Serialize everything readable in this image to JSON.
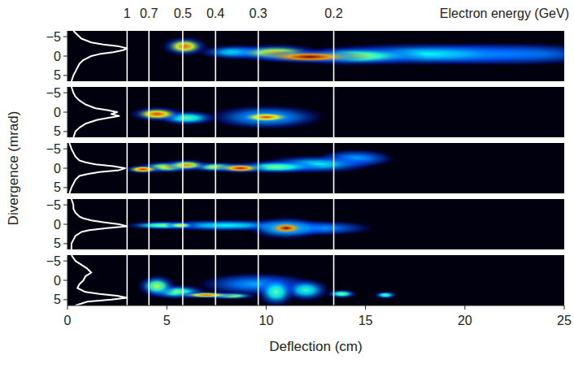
{
  "chart_data": {
    "type": "spectrometer_image",
    "xlabel": "Deflection (cm)",
    "ylabel": "Divergence (mrad)",
    "top_axis_label": "Electron energy (GeV)",
    "xlim": [
      0,
      25
    ],
    "xticks": [
      0,
      5,
      10,
      15,
      20,
      25
    ],
    "ylim": [
      6.5,
      -6.5
    ],
    "yticks": [
      -5,
      0,
      5
    ],
    "energies": [
      1,
      0.7,
      0.5,
      0.4,
      0.3,
      0.2
    ],
    "energy_positions": [
      3.0,
      4.1,
      5.8,
      7.45,
      9.6,
      13.4
    ],
    "panels": [
      {
        "profile_divergence": [
          -6.5,
          -5.5,
          -4.5,
          -3.5,
          -3,
          -2.5,
          -2,
          -1.5,
          -1,
          -0.5,
          0,
          1,
          2,
          3,
          4,
          5,
          6.5
        ],
        "profile_level": [
          0.3,
          0.5,
          0.7,
          1.2,
          1.8,
          2.6,
          3.0,
          2.8,
          2.3,
          1.6,
          1.2,
          0.8,
          0.6,
          0.5,
          0.4,
          0.3,
          0.2
        ],
        "blobs": [
          {
            "x": 5.9,
            "y": -2.5,
            "sx": 0.6,
            "sy": 1.3,
            "intensity": 0.75
          },
          {
            "x": 22,
            "y": -0.5,
            "sx": 3,
            "sy": 1.5,
            "intensity": 0.2
          },
          {
            "x": 18,
            "y": -0.5,
            "sx": 3,
            "sy": 1.5,
            "intensity": 0.3
          },
          {
            "x": 8.5,
            "y": -1,
            "sx": 1,
            "sy": 1,
            "intensity": 0.3
          },
          {
            "x": 14.5,
            "y": 0,
            "sx": 1.8,
            "sy": 1.3,
            "intensity": 0.5
          },
          {
            "x": 10.5,
            "y": -0.8,
            "sx": 1.2,
            "sy": 1.2,
            "intensity": 0.65
          },
          {
            "x": 12.2,
            "y": 0.2,
            "sx": 1.5,
            "sy": 0.9,
            "intensity": 1.0
          }
        ]
      },
      {
        "profile_divergence": [
          -6.5,
          -5,
          -4,
          -3,
          -2,
          -1,
          -0.5,
          0,
          0.5,
          1,
          1.5,
          2,
          3,
          4,
          5,
          6.5
        ],
        "profile_level": [
          0.2,
          0.3,
          0.4,
          0.6,
          0.9,
          1.4,
          2.0,
          2.5,
          2.2,
          2.6,
          2.0,
          1.5,
          0.9,
          0.6,
          0.4,
          0.3
        ],
        "blobs": [
          {
            "x": 10,
            "y": 1.3,
            "sx": 1.5,
            "sy": 1.6,
            "intensity": 0.3
          },
          {
            "x": 6,
            "y": 1.5,
            "sx": 0.8,
            "sy": 1,
            "intensity": 0.4
          },
          {
            "x": 4.5,
            "y": 0.5,
            "sx": 0.7,
            "sy": 1,
            "intensity": 0.8
          },
          {
            "x": 10,
            "y": 1.3,
            "sx": 0.8,
            "sy": 0.8,
            "intensity": 0.8
          }
        ]
      },
      {
        "profile_divergence": [
          -6.5,
          -5,
          -4,
          -3,
          -2,
          -1.5,
          -1,
          -0.5,
          0,
          0.5,
          1,
          1.5,
          2,
          3,
          4,
          5,
          6.5
        ],
        "profile_level": [
          0.1,
          0.2,
          0.3,
          0.4,
          0.6,
          0.9,
          1.4,
          2.3,
          2.9,
          2.6,
          1.6,
          1.0,
          0.6,
          0.4,
          0.3,
          0.2,
          0.1
        ],
        "blobs": [
          {
            "x": 14.5,
            "y": -2.5,
            "sx": 1,
            "sy": 1.2,
            "intensity": 0.2
          },
          {
            "x": 12.5,
            "y": -1,
            "sx": 1.5,
            "sy": 1.2,
            "intensity": 0.3
          },
          {
            "x": 10.5,
            "y": -0.3,
            "sx": 1.2,
            "sy": 0.9,
            "intensity": 0.45
          },
          {
            "x": 5,
            "y": -0.3,
            "sx": 0.8,
            "sy": 0.8,
            "intensity": 0.6
          },
          {
            "x": 7.5,
            "y": -0.3,
            "sx": 0.8,
            "sy": 0.7,
            "intensity": 0.55
          },
          {
            "x": 6,
            "y": -0.8,
            "sx": 0.6,
            "sy": 0.8,
            "intensity": 0.7
          },
          {
            "x": 3.8,
            "y": 0.3,
            "sx": 0.5,
            "sy": 0.6,
            "intensity": 0.85
          },
          {
            "x": 8.7,
            "y": 0,
            "sx": 0.7,
            "sy": 0.7,
            "intensity": 0.9
          }
        ]
      },
      {
        "profile_divergence": [
          -6.5,
          -5,
          -4,
          -3,
          -2,
          -1.5,
          -1,
          -0.5,
          0,
          0.5,
          1,
          1.5,
          2,
          3,
          4,
          5,
          6.5
        ],
        "profile_level": [
          0.2,
          0.3,
          0.3,
          0.4,
          0.6,
          0.8,
          1.2,
          1.8,
          2.6,
          3.0,
          2.0,
          1.1,
          0.7,
          0.4,
          0.3,
          0.2,
          0.2
        ],
        "blobs": [
          {
            "x": 12.5,
            "y": 1,
            "sx": 1.5,
            "sy": 1,
            "intensity": 0.2
          },
          {
            "x": 8,
            "y": 0.3,
            "sx": 2,
            "sy": 0.8,
            "intensity": 0.3
          },
          {
            "x": 4.8,
            "y": 0.3,
            "sx": 1,
            "sy": 0.6,
            "intensity": 0.45
          },
          {
            "x": 5.7,
            "y": 0.3,
            "sx": 0.4,
            "sy": 0.5,
            "intensity": 0.6
          },
          {
            "x": 11,
            "y": 1,
            "sx": 1,
            "sy": 1.5,
            "intensity": 0.45
          },
          {
            "x": 11,
            "y": 1,
            "sx": 0.55,
            "sy": 0.9,
            "intensity": 1.0
          }
        ]
      },
      {
        "profile_divergence": [
          -6.5,
          -5,
          -4,
          -3,
          -2,
          -1,
          0,
          1,
          2,
          3,
          3.5,
          4,
          4.5,
          5,
          5.5,
          6.5
        ],
        "profile_level": [
          0.2,
          0.4,
          0.7,
          1.0,
          1.2,
          0.9,
          0.8,
          0.6,
          0.5,
          0.9,
          1.6,
          2.5,
          3.0,
          2.2,
          1.0,
          0.4
        ],
        "blobs": [
          {
            "x": 9.5,
            "y": 1,
            "sx": 1.5,
            "sy": 1.5,
            "intensity": 0.2
          },
          {
            "x": 12,
            "y": 2.5,
            "sx": 0.6,
            "sy": 1.5,
            "intensity": 0.35
          },
          {
            "x": 10.5,
            "y": 3,
            "sx": 0.5,
            "sy": 2,
            "intensity": 0.4
          },
          {
            "x": 16,
            "y": 3.8,
            "sx": 0.3,
            "sy": 0.5,
            "intensity": 0.4
          },
          {
            "x": 13.8,
            "y": 3.5,
            "sx": 0.4,
            "sy": 0.6,
            "intensity": 0.45
          },
          {
            "x": 5.5,
            "y": 3,
            "sx": 0.8,
            "sy": 1,
            "intensity": 0.45
          },
          {
            "x": 4.5,
            "y": 1.5,
            "sx": 0.5,
            "sy": 1.5,
            "intensity": 0.5
          },
          {
            "x": 8.2,
            "y": 4,
            "sx": 0.7,
            "sy": 0.5,
            "intensity": 0.55
          },
          {
            "x": 7,
            "y": 3.8,
            "sx": 0.8,
            "sy": 0.5,
            "intensity": 0.75
          }
        ]
      }
    ]
  }
}
